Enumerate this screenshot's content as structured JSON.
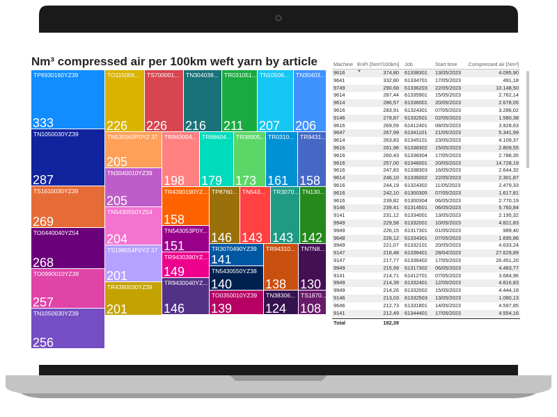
{
  "colors": {
    "bezel": "#111111",
    "base": "#c8c8c8"
  },
  "chart_data": {
    "type": "treemap",
    "title": "Nm³ compressed air per 100km weft yarn by article",
    "tiles": [
      {
        "label": "TP6930160YZ39",
        "value": 333,
        "color": "#118dff"
      },
      {
        "label": "TN1050030YZ39",
        "value": 287,
        "color": "#12239e"
      },
      {
        "label": "TS1610030YZ39",
        "value": 269,
        "color": "#e66c37"
      },
      {
        "label": "TO0440040YZ54",
        "value": 268,
        "color": "#6b007b"
      },
      {
        "label": "TO0990010YZ39",
        "value": 257,
        "color": "#e044a7"
      },
      {
        "label": "TN1050630YZ39",
        "value": 256,
        "color": "#744ec2"
      },
      {
        "label": "TO115006...",
        "value": 226,
        "color": "#d9b300"
      },
      {
        "label": "TS700001...",
        "value": 226,
        "color": "#d64550"
      },
      {
        "label": "TN304038...",
        "value": 216,
        "color": "#197278"
      },
      {
        "label": "TR031051...",
        "value": 211,
        "color": "#1aab40"
      },
      {
        "label": "TN10506...",
        "value": 207,
        "color": "#15c6f4"
      },
      {
        "label": "TN30403...",
        "value": 206,
        "color": "#4092ff"
      },
      {
        "label": "TN535063P0YZ 37",
        "value": 205,
        "color": "#ffa058"
      },
      {
        "label": "TN3040010YZ39",
        "value": 205,
        "color": "#be5dc9"
      },
      {
        "label": "TN5430550YZ54",
        "value": 204,
        "color": "#f472d0"
      },
      {
        "label": "TS198054P0YZ 37",
        "value": 201,
        "color": "#b5a1ff"
      },
      {
        "label": "TR4390030YZ39",
        "value": 201,
        "color": "#c4a200"
      },
      {
        "label": "TR943004...",
        "value": 198,
        "color": "#ff8080"
      },
      {
        "label": "TR86604...",
        "value": 179,
        "color": "#00dbbc"
      },
      {
        "label": "TR38905...",
        "value": 173,
        "color": "#5bd667"
      },
      {
        "label": "TR0310...",
        "value": 161,
        "color": "#0091d5"
      },
      {
        "label": "TR9431...",
        "value": 158,
        "color": "#4668c5"
      },
      {
        "label": "TR4390190YZ...",
        "value": 158,
        "color": "#ff6300"
      },
      {
        "label": "TN543053P0Y...",
        "value": 151,
        "color": "#99008a"
      },
      {
        "label": "TR9430390YZ...",
        "value": 149,
        "color": "#ec008c"
      },
      {
        "label": "TR9430040YZ...",
        "value": 146,
        "color": "#533285"
      },
      {
        "label": "TP8760...",
        "value": 146,
        "color": "#99700a"
      },
      {
        "label": "TN543...",
        "value": 143,
        "color": "#ff4141"
      },
      {
        "label": "TR3070...",
        "value": 143,
        "color": "#1f9a85"
      },
      {
        "label": "TN130...",
        "value": 142,
        "color": "#25891c"
      },
      {
        "label": "TR3070490YZ39",
        "value": 141,
        "color": "#0057a2"
      },
      {
        "label": "TN5430550YZ38",
        "value": 140,
        "color": "#002050"
      },
      {
        "label": "TR94310...",
        "value": 138,
        "color": "#c94f0f"
      },
      {
        "label": "TNTN8...",
        "value": 130,
        "color": "#450f54"
      },
      {
        "label": "TO0350010YZ39",
        "value": 139,
        "color": "#b60064"
      },
      {
        "label": "TN38306...",
        "value": 124,
        "color": "#34124f"
      },
      {
        "label": "TS1870...",
        "value": 108,
        "color": "#6a1a6a"
      }
    ]
  },
  "table": {
    "headers": {
      "machine": "Machine",
      "enpi": "EnPI [Nm³/100km]",
      "job": "Job",
      "start": "Start time",
      "air": "Compressed air [Nm³]"
    },
    "rows": [
      [
        "9616",
        "374,80",
        "61338301",
        "13/05/2023",
        "4.095,90"
      ],
      [
        "9641",
        "332,80",
        "61334701",
        "17/05/2023",
        "491,18"
      ],
      [
        "9749",
        "290,68",
        "61336203",
        "22/05/2023",
        "10.148,50"
      ],
      [
        "9614",
        "287,44",
        "61335901",
        "15/05/2023",
        "2.762,14"
      ],
      [
        "9614",
        "286,57",
        "61336001",
        "20/05/2023",
        "2.678,05"
      ],
      [
        "9616",
        "283,91",
        "61324301",
        "07/05/2023",
        "3.286,02"
      ],
      [
        "9146",
        "279,87",
        "61332501",
        "02/05/2023",
        "1.580,38"
      ],
      [
        "9616",
        "269,59",
        "61412401",
        "08/05/2023",
        "3.928,63"
      ],
      [
        "9647",
        "267,99",
        "61341101",
        "21/05/2023",
        "5.341,99"
      ],
      [
        "9614",
        "263,83",
        "61345101",
        "23/05/2023",
        "4.109,37"
      ],
      [
        "9616",
        "261,96",
        "61338302",
        "15/05/2023",
        "2.809,55"
      ],
      [
        "9616",
        "260,43",
        "61338304",
        "17/05/2023",
        "2.788,35"
      ],
      [
        "9616",
        "257,00",
        "61346001",
        "20/05/2023",
        "14.728,19"
      ],
      [
        "9616",
        "247,83",
        "61338303",
        "16/05/2023",
        "2.644,32"
      ],
      [
        "9614",
        "246,10",
        "61336002",
        "22/05/2023",
        "2.301,87"
      ],
      [
        "9616",
        "244,19",
        "61324302",
        "11/05/2023",
        "2.479,33"
      ],
      [
        "9616",
        "242,10",
        "61300305",
        "07/05/2023",
        "1.617,81"
      ],
      [
        "9616",
        "239,82",
        "61300304",
        "06/05/2023",
        "2.770,19"
      ],
      [
        "9146",
        "239,41",
        "61314501",
        "06/05/2023",
        "5.760,84"
      ],
      [
        "9141",
        "231,12",
        "61334001",
        "13/05/2023",
        "2.195,32"
      ],
      [
        "9949",
        "229,58",
        "61332001",
        "10/05/2023",
        "4.821,83"
      ],
      [
        "9949",
        "226,15",
        "61317301",
        "01/05/2023",
        "989,40"
      ],
      [
        "9648",
        "226,12",
        "61334301",
        "07/05/2023",
        "1.695,86"
      ],
      [
        "9949",
        "221,07",
        "61332101",
        "20/05/2023",
        "4.633,24"
      ],
      [
        "9147",
        "218,48",
        "61336401",
        "28/04/2023",
        "27.629,89"
      ],
      [
        "9147",
        "217,77",
        "61336402",
        "17/05/2023",
        "26.451,20"
      ],
      [
        "9949",
        "215,99",
        "61317302",
        "06/05/2023",
        "4.483,77"
      ],
      [
        "9141",
        "214,71",
        "61412701",
        "07/05/2023",
        "3.684,96"
      ],
      [
        "9949",
        "214,39",
        "61332401",
        "12/05/2023",
        "4.816,83"
      ],
      [
        "9949",
        "214,26",
        "61332002",
        "15/05/2023",
        "4.444,18"
      ],
      [
        "9146",
        "213,03",
        "61332503",
        "13/05/2023",
        "1.080,13"
      ],
      [
        "9646",
        "212,73",
        "61331801",
        "14/05/2023",
        "4.597,85"
      ],
      [
        "9141",
        "212,49",
        "61344401",
        "17/05/2023",
        "4.554,16"
      ]
    ],
    "total_label": "Total",
    "total_value": "182,39"
  }
}
